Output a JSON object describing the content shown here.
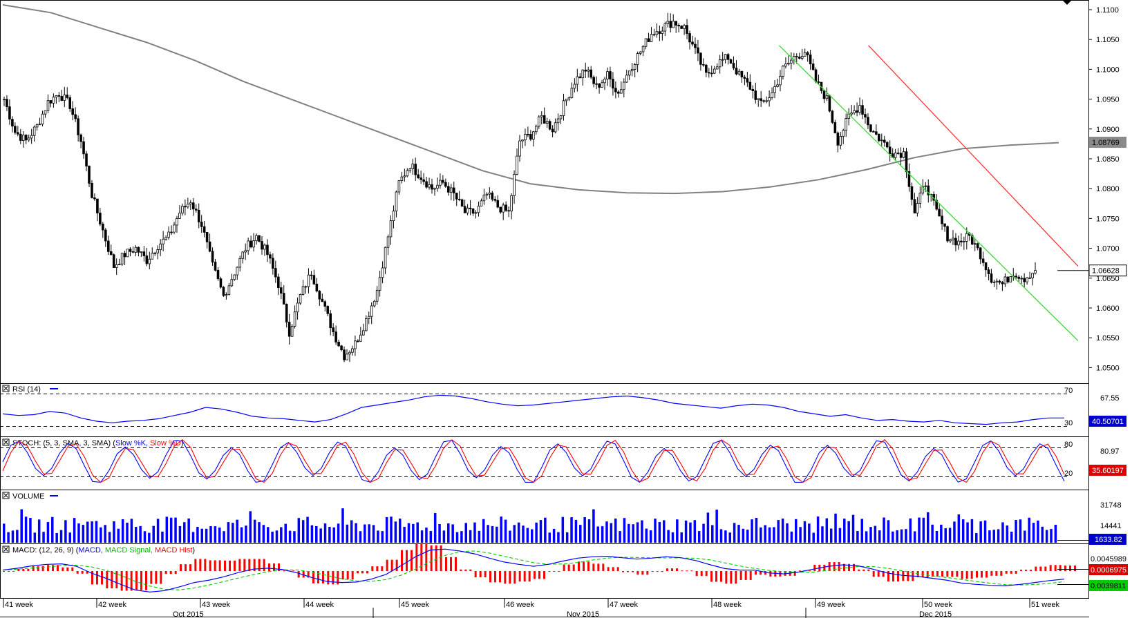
{
  "chart_data": {
    "type": "candlestick",
    "price_axis": {
      "ylim": [
        1.0475,
        1.1115
      ],
      "ticks": [
        "1.1100",
        "1.1050",
        "1.1000",
        "1.0950",
        "1.0900",
        "1.0850",
        "1.0800",
        "1.0750",
        "1.0700",
        "1.0650",
        "1.0600",
        "1.0550",
        "1.0500"
      ],
      "ma_label": "1.08769",
      "last_label": "1.06628",
      "ma_value": 1.08769,
      "last_value": 1.06628
    },
    "ma_points": [
      1.1108,
      1.1095,
      1.107,
      1.1045,
      1.1015,
      1.098,
      1.095,
      1.092,
      1.089,
      1.086,
      1.083,
      1.0808,
      1.0798,
      1.0793,
      1.0792,
      1.0795,
      1.0803,
      1.0815,
      1.0832,
      1.0852,
      1.0867,
      1.0873,
      1.0877
    ],
    "closes": [
      1.095,
      1.0895,
      1.088,
      1.0905,
      1.0945,
      1.096,
      1.094,
      1.088,
      1.079,
      1.073,
      1.067,
      1.069,
      1.07,
      1.068,
      1.0705,
      1.072,
      1.076,
      1.078,
      1.074,
      1.067,
      1.062,
      1.066,
      1.07,
      1.072,
      1.069,
      1.064,
      1.056,
      1.062,
      1.066,
      1.061,
      1.056,
      1.052,
      1.054,
      1.058,
      1.063,
      1.072,
      1.081,
      1.084,
      1.082,
      1.08,
      1.081,
      1.079,
      1.076,
      1.076,
      1.079,
      1.077,
      1.076,
      1.088,
      1.089,
      1.092,
      1.09,
      1.094,
      1.098,
      1.1,
      1.097,
      1.099,
      1.096,
      1.1,
      1.103,
      1.106,
      1.107,
      1.108,
      1.107,
      1.103,
      1.099,
      1.101,
      1.102,
      1.099,
      1.097,
      1.094,
      1.096,
      1.1,
      1.102,
      1.103,
      1.098,
      1.095,
      1.088,
      1.092,
      1.094,
      1.09,
      1.088,
      1.086,
      1.086,
      1.076,
      1.081,
      1.076,
      1.072,
      1.071,
      1.072,
      1.069,
      1.065,
      1.064,
      1.066,
      1.065,
      1.0663
    ],
    "trendlines": {
      "upper_red": {
        "color": "#ff3333",
        "start": [
          0.805,
          1.104
        ],
        "end": [
          1.0,
          1.067
        ]
      },
      "lower_green": {
        "color": "#33dd33",
        "start": [
          0.722,
          1.104
        ],
        "end": [
          1.0,
          1.0545
        ]
      }
    },
    "rsi": {
      "label": "RSI (14)",
      "levels": [
        "70",
        "30"
      ],
      "value_label": "40.50701",
      "scale_label": "67.55",
      "values": [
        45,
        43,
        44,
        48,
        46,
        40,
        36,
        34,
        36,
        37,
        39,
        43,
        47,
        53,
        51,
        47,
        42,
        40,
        39,
        37,
        35,
        38,
        45,
        53,
        56,
        59,
        62,
        66,
        68,
        67,
        64,
        60,
        57,
        55,
        56,
        58,
        60,
        62,
        64,
        66,
        67,
        65,
        62,
        58,
        56,
        54,
        52,
        55,
        57,
        56,
        53,
        48,
        45,
        42,
        44,
        40,
        37,
        38,
        36,
        35,
        37,
        34,
        33,
        32,
        34,
        35,
        38,
        40,
        40
      ]
    },
    "stoch": {
      "label": "STOCH: (5, 3, SMA, 3, SMA)",
      "k_label": "Slow %K,",
      "d_label": "Slow %D",
      "levels": [
        "80",
        "20"
      ],
      "scale_label": "80.97",
      "value_label": "35.60197"
    },
    "volume": {
      "label": "VOLUME",
      "ticks": [
        "31748",
        "14441"
      ],
      "value_label": "1633.82"
    },
    "macd": {
      "label": "MACD: (12, 26, 9)",
      "macd_name": "MACD,",
      "signal_name": "MACD Signal,",
      "hist_name": "MACD Hist",
      "scale_label": "0.0045989",
      "hist_value_label": "0.0006975",
      "value_label": "0.0039811",
      "macd_values": [
        0.0002,
        0.0006,
        0.0011,
        0.0014,
        0.0015,
        0.001,
        -0.0004,
        -0.0015,
        -0.0028,
        -0.004,
        -0.0044,
        -0.0041,
        -0.0033,
        -0.0024,
        -0.0019,
        -0.0012,
        -0.0003,
        0.0004,
        0.0006,
        0.0003,
        -0.0004,
        -0.0014,
        -0.0022,
        -0.0024,
        -0.0023,
        -0.0017,
        -0.0007,
        0.0011,
        0.003,
        0.0044,
        0.0046,
        0.0042,
        0.0036,
        0.0027,
        0.0019,
        0.0014,
        0.001,
        0.0014,
        0.0021,
        0.0027,
        0.003,
        0.0031,
        0.0028,
        0.0025,
        0.0027,
        0.003,
        0.0028,
        0.0022,
        0.0013,
        0.0005,
        0.0002,
        0.0002,
        -0.0004,
        -0.0006,
        -0.0002,
        0.0004,
        0.001,
        0.0013,
        0.0011,
        0.0004,
        -0.0004,
        -0.0009,
        -0.0011,
        -0.0015,
        -0.0019,
        -0.0025,
        -0.0028,
        -0.003,
        -0.0031,
        -0.0028,
        -0.0024,
        -0.002,
        -0.0017
      ]
    },
    "x_axis": {
      "weeks": [
        "41 week",
        "42 week",
        "43 week",
        "44 week",
        "45 week",
        "46 week",
        "47 week",
        "48 week",
        "49 week",
        "50 week",
        "51 week"
      ],
      "months": [
        "Oct 2015",
        "Nov 2015",
        "Dec 2015"
      ]
    }
  }
}
